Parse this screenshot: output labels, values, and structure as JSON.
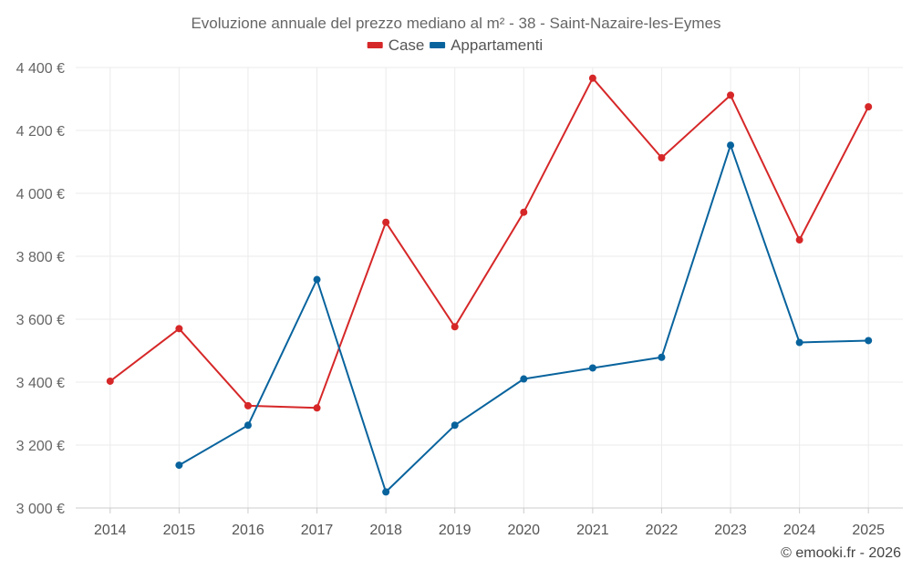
{
  "chart_data": {
    "type": "line",
    "title": "Evoluzione annuale del prezzo mediano al m² - 38 - Saint-Nazaire-les-Eymes",
    "xlabel": "",
    "ylabel": "",
    "x": [
      2014,
      2015,
      2016,
      2017,
      2018,
      2019,
      2020,
      2021,
      2022,
      2023,
      2024,
      2025
    ],
    "x_labels": [
      "2014",
      "2015",
      "2016",
      "2017",
      "2018",
      "2019",
      "2020",
      "2021",
      "2022",
      "2023",
      "2024",
      "2025"
    ],
    "ylim": [
      3000,
      4400
    ],
    "y_ticks": [
      3000,
      3200,
      3400,
      3600,
      3800,
      4000,
      4200,
      4400
    ],
    "y_tick_labels": [
      "3 000 €",
      "3 200 €",
      "3 400 €",
      "3 600 €",
      "3 800 €",
      "4 000 €",
      "4 200 €",
      "4 400 €"
    ],
    "grid": true,
    "legend_position": "top-center",
    "series": [
      {
        "name": "Case",
        "color": "#d62728",
        "values": [
          3403,
          3570,
          3325,
          3318,
          3908,
          3576,
          3940,
          4366,
          4113,
          4312,
          3852,
          4275
        ]
      },
      {
        "name": "Appartamenti",
        "color": "#08639d",
        "values": [
          null,
          3136,
          3263,
          3726,
          3051,
          3263,
          3410,
          3445,
          3479,
          4153,
          3526,
          3532
        ]
      }
    ]
  },
  "footer": {
    "credit": "© emooki.fr - 2026"
  }
}
